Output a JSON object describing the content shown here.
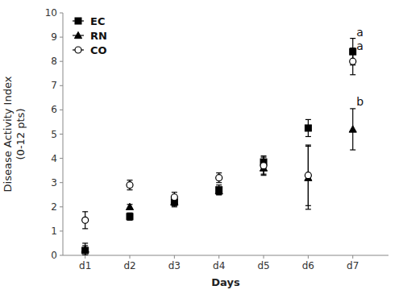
{
  "chart_data": {
    "type": "scatter",
    "x": [
      1,
      2,
      3,
      4,
      5,
      6,
      7
    ],
    "xlim": [
      0.5,
      7.8
    ],
    "xticks": [
      {
        "value": 1,
        "label": "d1"
      },
      {
        "value": 2,
        "label": "d2"
      },
      {
        "value": 3,
        "label": "d3"
      },
      {
        "value": 4,
        "label": "d4"
      },
      {
        "value": 5,
        "label": "d5"
      },
      {
        "value": 6,
        "label": "d6"
      },
      {
        "value": 7,
        "label": "d7"
      }
    ],
    "ylim": [
      0,
      10
    ],
    "yticks": [
      0,
      1,
      2,
      3,
      4,
      5,
      6,
      7,
      8,
      9,
      10
    ],
    "x_label": "Days",
    "y_label": "Disease Activity Index\n(0-12 pts)",
    "grid": false,
    "legend": "upper left",
    "series": [
      {
        "name": "EC",
        "color": "#000000",
        "marker": "square",
        "values": [
          0.2,
          1.6,
          2.2,
          2.7,
          3.85,
          5.25,
          8.4
        ],
        "errors": [
          0.2,
          0.15,
          0.15,
          0.2,
          0.25,
          0.35,
          0.55
        ]
      },
      {
        "name": "RN",
        "color": "#000000",
        "marker": "triangle",
        "values": [
          0.25,
          2.0,
          2.2,
          2.65,
          3.6,
          3.2,
          5.2
        ],
        "errors": [
          0.25,
          0.1,
          0.2,
          0.15,
          0.3,
          1.3,
          0.85
        ]
      },
      {
        "name": "CO",
        "color": "#000000",
        "marker": "open-circle",
        "values": [
          1.45,
          2.9,
          2.4,
          3.2,
          3.7,
          3.3,
          8.0
        ],
        "errors": [
          0.35,
          0.2,
          0.2,
          0.2,
          0.35,
          1.25,
          0.55
        ]
      }
    ],
    "annotations": [
      {
        "text": "a",
        "x": 7.08,
        "y": 9.2
      },
      {
        "text": "a",
        "x": 7.08,
        "y": 8.65
      },
      {
        "text": "b",
        "x": 7.08,
        "y": 6.35
      }
    ]
  }
}
